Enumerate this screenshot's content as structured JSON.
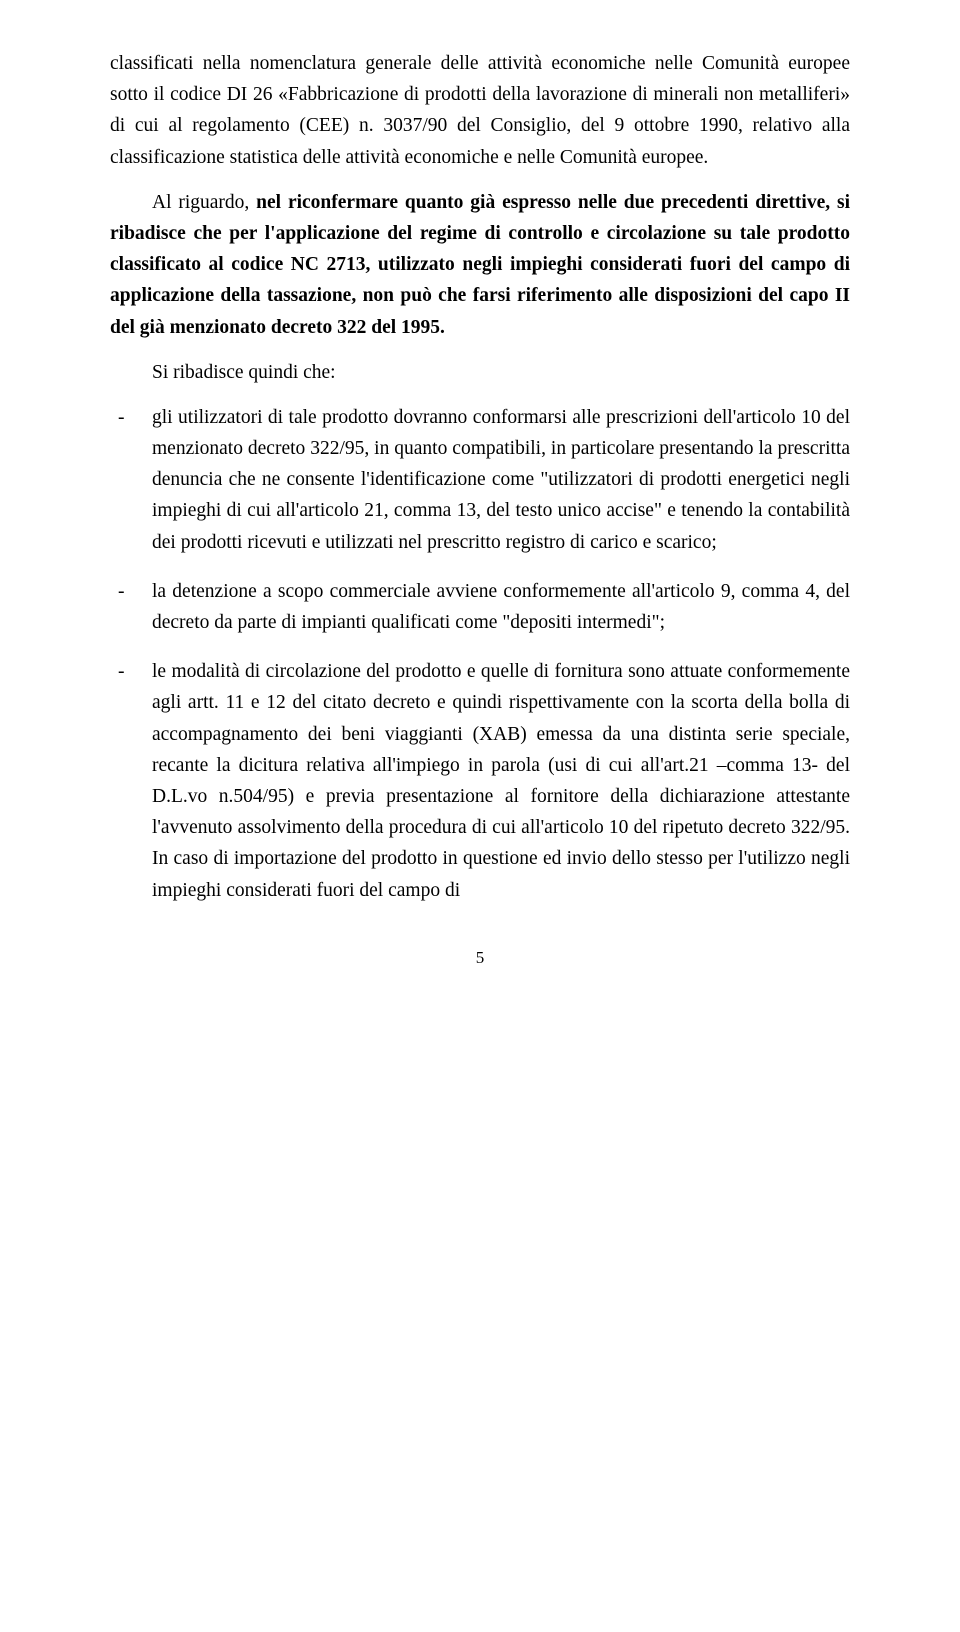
{
  "paragraphs": {
    "p1": "classificati nella nomenclatura generale delle attività economiche nelle Comunità europee sotto il codice DI 26 «Fabbricazione di prodotti della lavorazione di minerali non metalliferi» di cui al regolamento (CEE) n. 3037/90 del Consiglio, del 9 ottobre 1990, relativo alla classificazione statistica delle attività economiche e nelle Comunità europee.",
    "p2_pre": "Al riguardo, ",
    "p2_bold": "nel riconfermare quanto già espresso nelle due precedenti direttive, si ribadisce che per l'applicazione del regime di controllo e circolazione su tale prodotto classificato al codice NC 2713, utilizzato negli impieghi considerati fuori del campo di applicazione della tassazione, non può che farsi riferimento alle disposizioni del capo II del già menzionato decreto 322 del 1995.",
    "p3": "Si ribadisce quindi che:"
  },
  "bullets": {
    "b1": "gli utilizzatori di tale prodotto dovranno conformarsi alle prescrizioni dell'articolo 10 del menzionato decreto 322/95, in quanto compatibili, in particolare presentando la prescritta denuncia che ne consente l'identificazione come \"utilizzatori di prodotti energetici negli impieghi di cui all'articolo 21, comma 13, del testo unico accise\" e tenendo la contabilità dei prodotti ricevuti e utilizzati nel prescritto registro di carico e scarico;",
    "b2": "la detenzione a scopo commerciale avviene conformemente all'articolo 9, comma 4, del decreto da parte di impianti qualificati come \"depositi intermedi\";",
    "b3": "le modalità di circolazione del prodotto e quelle di fornitura sono attuate conformemente agli artt. 11 e 12 del citato decreto e quindi rispettivamente con la scorta della bolla di accompagnamento dei beni viaggianti (XAB) emessa da una distinta serie speciale, recante la dicitura relativa all'impiego in parola (usi di cui all'art.21 –comma 13- del D.L.vo n.504/95) e previa presentazione al fornitore della dichiarazione attestante l'avvenuto assolvimento della procedura di cui all'articolo 10 del ripetuto decreto 322/95. In caso di importazione del prodotto in questione ed invio dello stesso per l'utilizzo negli impieghi considerati fuori del campo di"
  },
  "page_number": "5"
}
